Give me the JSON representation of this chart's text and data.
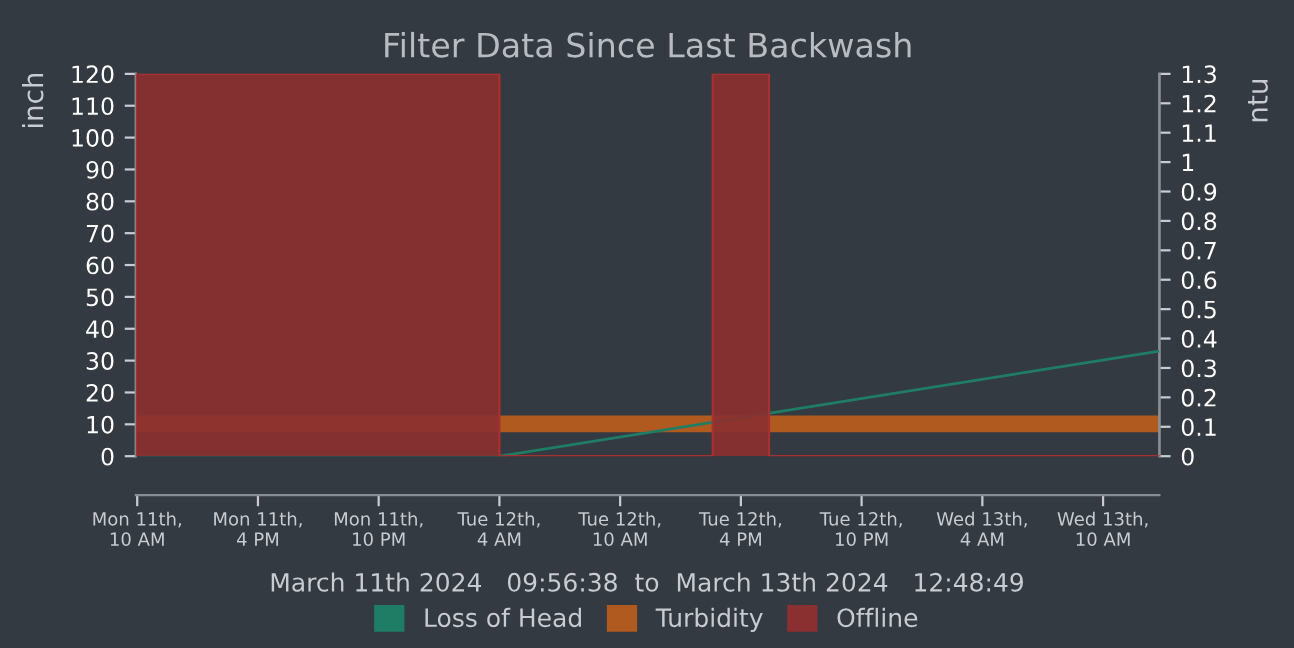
{
  "chart_data": {
    "type": "line",
    "title": "Filter Data Since Last Backwash",
    "ylabel": "inch",
    "y2label": "ntu",
    "annotations": [
      "March 11th 2024   09:56:38  to  March 13th 2024   12:48:49"
    ],
    "series": [
      {
        "name": "Loss of Head",
        "color": "#1e7d64",
        "x": [
          "2024-03-11T09:56",
          "2024-03-12T04:00",
          "2024-03-13T12:48"
        ],
        "values": [
          0,
          0,
          33
        ]
      },
      {
        "name": "Turbidity",
        "axis": "y2",
        "color": "#b05a20",
        "x": [
          "2024-03-11T09:56",
          "2024-03-13T12:48"
        ],
        "values": [
          0.11,
          0.11
        ]
      },
      {
        "name": "Offline",
        "type": "area",
        "color": "#8b3030",
        "x": [
          "2024-03-11T09:56",
          "2024-03-11T09:56",
          "2024-03-12T04:00",
          "2024-03-12T04:00",
          "2024-03-12T14:36",
          "2024-03-12T14:36",
          "2024-03-12T17:24",
          "2024-03-12T17:24",
          "2024-03-13T12:48"
        ],
        "values": [
          0,
          120,
          120,
          0,
          0,
          120,
          120,
          0,
          0
        ]
      }
    ],
    "xlim": [
      "2024-03-11T09:56",
      "2024-03-13T12:48"
    ],
    "xticks": [
      {
        "value": "2024-03-11T10:00",
        "label": "Mon 11th, 10 AM"
      },
      {
        "value": "2024-03-11T16:00",
        "label": "Mon 11th, 4 PM"
      },
      {
        "value": "2024-03-11T22:00",
        "label": "Mon 11th, 10 PM"
      },
      {
        "value": "2024-03-12T04:00",
        "label": "Tue 12th, 4 AM"
      },
      {
        "value": "2024-03-12T10:00",
        "label": "Tue 12th, 10 AM"
      },
      {
        "value": "2024-03-12T16:00",
        "label": "Tue 12th, 4 PM"
      },
      {
        "value": "2024-03-12T22:00",
        "label": "Tue 12th, 10 PM"
      },
      {
        "value": "2024-03-13T04:00",
        "label": "Wed 13th, 4 AM"
      },
      {
        "value": "2024-03-13T10:00",
        "label": "Wed 13th, 10 AM"
      }
    ],
    "ylim": [
      0,
      120
    ],
    "yticks": [
      0,
      10,
      20,
      30,
      40,
      50,
      60,
      70,
      80,
      90,
      100,
      110,
      120
    ],
    "y2lim": [
      0,
      1.3
    ],
    "y2ticks": [
      0,
      0.1,
      0.2,
      0.3,
      0.4,
      0.5,
      0.6,
      0.7,
      0.8,
      0.9,
      1,
      1.1,
      1.2,
      1.3
    ],
    "grid": false,
    "legend": "bottom",
    "marker": "none"
  }
}
